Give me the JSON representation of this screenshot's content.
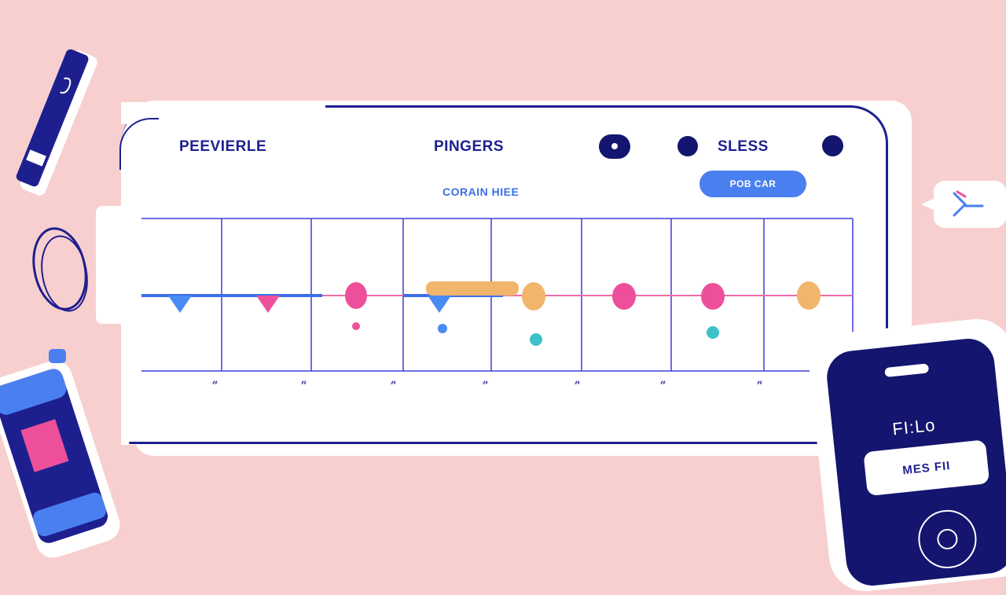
{
  "app": {
    "title": "PEEVIERLE",
    "nav_title": "PINGERS",
    "nav_status": "SLESS",
    "subtitle": "CORAIN HIEE",
    "primary_button": "POB CAR"
  },
  "timeline": {
    "tick_labels": [
      "𝓃",
      "𝓃",
      "𝓃",
      "𝓃",
      "𝓃",
      "𝓃",
      "𝓃"
    ],
    "marker_colors": {
      "blue": "#4a8af4",
      "pink": "#ee4f9a",
      "orange": "#f1b56c",
      "teal": "#3ec2c8",
      "navy": "#3a3fd8"
    }
  },
  "phone": {
    "label": "FI:Lo",
    "card_text": "MES FII"
  },
  "icons": [
    "record-icon",
    "dot-icon",
    "chevron-icon",
    "pen-icon",
    "cable-icon",
    "usb-drive-icon"
  ]
}
